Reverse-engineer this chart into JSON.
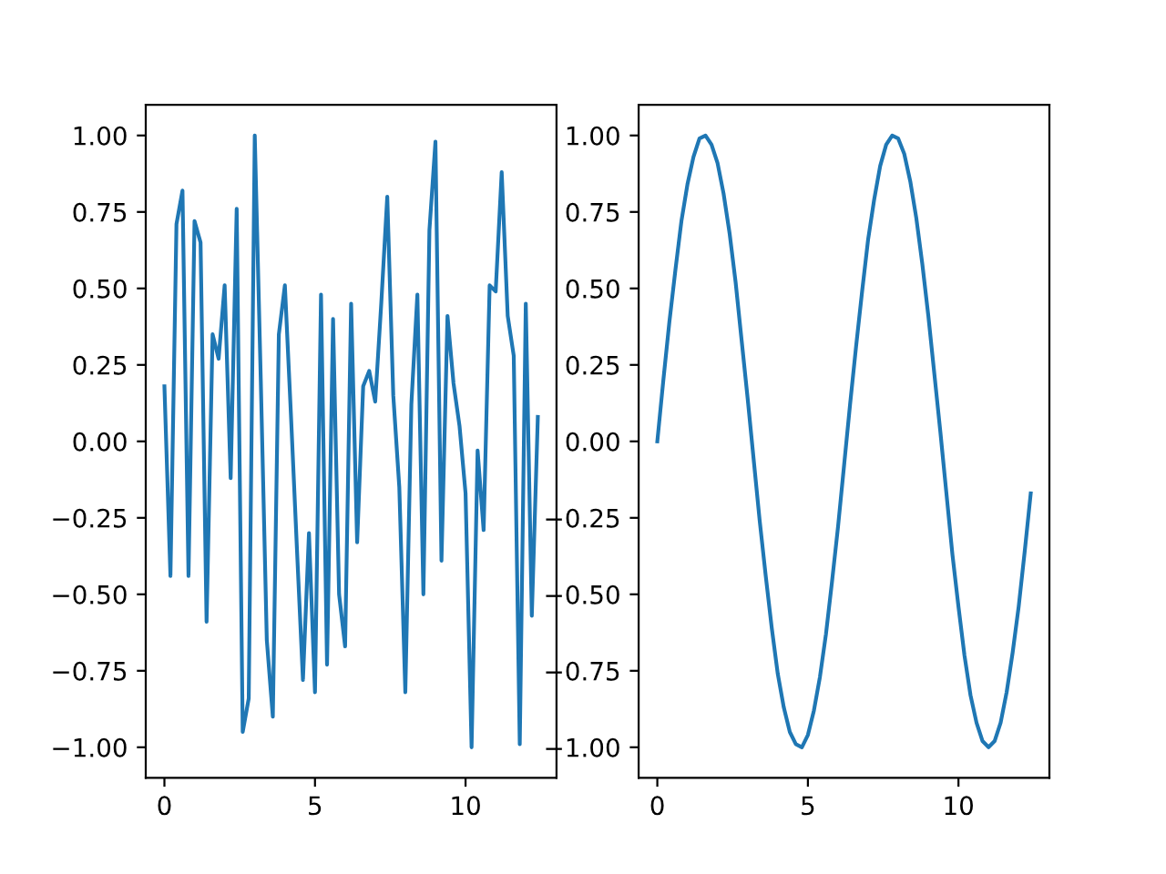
{
  "chart_data": [
    {
      "type": "line",
      "x": [
        0,
        0.2,
        0.4,
        0.6,
        0.8,
        1,
        1.2,
        1.4,
        1.6,
        1.8,
        2,
        2.2,
        2.4,
        2.6,
        2.8,
        3,
        3.2,
        3.4,
        3.6,
        3.8,
        4,
        4.2,
        4.4,
        4.6,
        4.8,
        5,
        5.2,
        5.4,
        5.6,
        5.8,
        6,
        6.2,
        6.4,
        6.6,
        6.8,
        7,
        7.2,
        7.4,
        7.6,
        7.8,
        8,
        8.2,
        8.4,
        8.6,
        8.8,
        9,
        9.2,
        9.4,
        9.6,
        9.8,
        10,
        10.2,
        10.4,
        10.6,
        10.8,
        11,
        11.2,
        11.4,
        11.6,
        11.8,
        12,
        12.2,
        12.4
      ],
      "series": [
        {
          "color": "#1f77b4",
          "values": [
            0.18,
            -0.44,
            0.71,
            0.82,
            -0.44,
            0.72,
            0.65,
            -0.59,
            0.35,
            0.27,
            0.51,
            -0.12,
            0.76,
            -0.95,
            -0.84,
            1.0,
            0.2,
            -0.65,
            -0.9,
            0.35,
            0.51,
            0.09,
            -0.35,
            -0.78,
            -0.3,
            -0.82,
            0.48,
            -0.73,
            0.4,
            -0.5,
            -0.67,
            0.45,
            -0.33,
            0.18,
            0.23,
            0.13,
            0.45,
            0.8,
            0.15,
            -0.15,
            -0.82,
            0.12,
            0.48,
            -0.5,
            0.69,
            0.98,
            -0.39,
            0.41,
            0.19,
            0.05,
            -0.17,
            -1.0,
            -0.03,
            -0.29,
            0.51,
            0.49,
            0.88,
            0.41,
            0.28,
            -0.99,
            0.45,
            -0.57,
            0.08
          ]
        }
      ],
      "xlim": [
        -0.62,
        13.02
      ],
      "xticks": [
        0,
        5,
        10
      ],
      "ylim": [
        -1.1,
        1.1
      ],
      "yticks": [
        {
          "value": -1,
          "label": "−1.00"
        },
        {
          "value": -0.75,
          "label": "−0.75"
        },
        {
          "value": -0.5,
          "label": "−0.50"
        },
        {
          "value": -0.25,
          "label": "−0.25"
        },
        {
          "value": 0,
          "label": "0.00"
        },
        {
          "value": 0.25,
          "label": "0.25"
        },
        {
          "value": 0.5,
          "label": "0.50"
        },
        {
          "value": 0.75,
          "label": "0.75"
        },
        {
          "value": 1,
          "label": "1.00"
        }
      ]
    },
    {
      "type": "line",
      "x": [
        0,
        0.2,
        0.4,
        0.6,
        0.8,
        1,
        1.2,
        1.4,
        1.6,
        1.8,
        2,
        2.2,
        2.4,
        2.6,
        2.8,
        3,
        3.2,
        3.4,
        3.6,
        3.8,
        4,
        4.2,
        4.4,
        4.6,
        4.8,
        5,
        5.2,
        5.4,
        5.6,
        5.8,
        6,
        6.2,
        6.4,
        6.6,
        6.8,
        7,
        7.2,
        7.4,
        7.6,
        7.8,
        8,
        8.2,
        8.4,
        8.6,
        8.8,
        9,
        9.2,
        9.4,
        9.6,
        9.8,
        10,
        10.2,
        10.4,
        10.6,
        10.8,
        11,
        11.2,
        11.4,
        11.6,
        11.8,
        12,
        12.2,
        12.4
      ],
      "series": [
        {
          "color": "#1f77b4",
          "values": [
            0,
            0.2,
            0.39,
            0.56,
            0.72,
            0.84,
            0.93,
            0.99,
            1.0,
            0.97,
            0.91,
            0.81,
            0.68,
            0.52,
            0.33,
            0.14,
            -0.06,
            -0.26,
            -0.44,
            -0.61,
            -0.76,
            -0.87,
            -0.95,
            -0.99,
            -1.0,
            -0.96,
            -0.88,
            -0.77,
            -0.63,
            -0.46,
            -0.28,
            -0.08,
            0.12,
            0.31,
            0.49,
            0.66,
            0.79,
            0.9,
            0.97,
            1.0,
            0.99,
            0.94,
            0.85,
            0.73,
            0.58,
            0.41,
            0.22,
            0.03,
            -0.17,
            -0.37,
            -0.54,
            -0.7,
            -0.83,
            -0.92,
            -0.98,
            -1.0,
            -0.98,
            -0.92,
            -0.82,
            -0.69,
            -0.54,
            -0.36,
            -0.17
          ]
        }
      ],
      "xlim": [
        -0.62,
        13.02
      ],
      "xticks": [
        0,
        5,
        10
      ],
      "ylim": [
        -1.1,
        1.1
      ],
      "yticks": [
        {
          "value": -1,
          "label": "−1.00"
        },
        {
          "value": -0.75,
          "label": "−0.75"
        },
        {
          "value": -0.5,
          "label": "−0.50"
        },
        {
          "value": -0.25,
          "label": "−0.25"
        },
        {
          "value": 0,
          "label": "0.00"
        },
        {
          "value": 0.25,
          "label": "0.25"
        },
        {
          "value": 0.5,
          "label": "0.50"
        },
        {
          "value": 0.75,
          "label": "0.75"
        },
        {
          "value": 1,
          "label": "1.00"
        }
      ]
    }
  ]
}
